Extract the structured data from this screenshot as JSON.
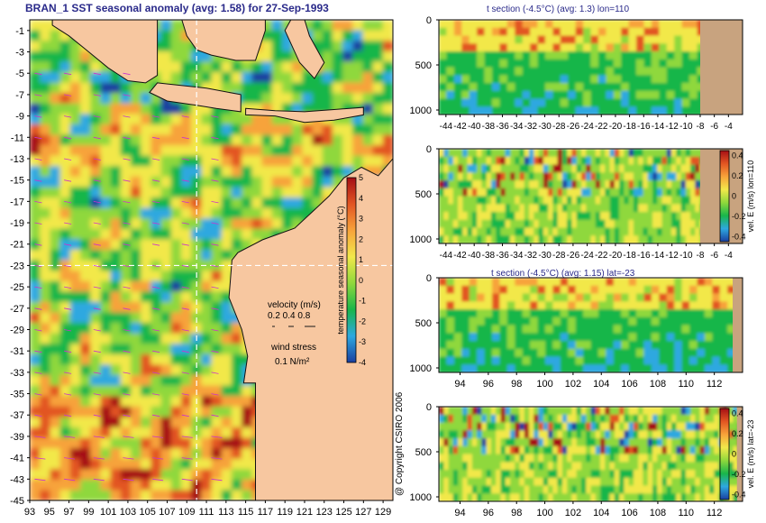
{
  "main_title": "BRAN_1 SST seasonal anomaly (avg: 1.58) for 27-Sep-1993",
  "copyright": "@ Copyright CSIRO 2006",
  "colors": {
    "ocean_ramp": [
      "#1a3fa0",
      "#2ea8e0",
      "#19b64a",
      "#8fd83c",
      "#f2e84a",
      "#f7a33a",
      "#e25522",
      "#a50f15"
    ],
    "land": "#f7c7a0",
    "panel_land": "#c8a37f",
    "title_blue": "#2a2a8a",
    "wind_arrow": "#cc33cc",
    "velocity_arrow": "#1a1a1a"
  },
  "chart_data": [
    {
      "type": "heatmap",
      "name": "map",
      "title": "BRAN_1 SST seasonal anomaly (avg: 1.58) for 27-Sep-1993",
      "x_ticks": [
        "93",
        "95",
        "97",
        "99",
        "101",
        "103",
        "105",
        "107",
        "109",
        "111",
        "113",
        "115",
        "117",
        "119",
        "121",
        "123",
        "125",
        "127",
        "129"
      ],
      "y_ticks": [
        "-1",
        "-3",
        "-5",
        "-7",
        "-9",
        "-11",
        "-13",
        "-15",
        "-17",
        "-19",
        "-21",
        "-23",
        "-25",
        "-27",
        "-29",
        "-31",
        "-33",
        "-35",
        "-37",
        "-39",
        "-41",
        "-43",
        "-45"
      ],
      "xlim": [
        93,
        130
      ],
      "ylim": [
        -45,
        0
      ],
      "section_lon": 110,
      "section_lat": -23,
      "colorbar": {
        "label": "temperature seasonal anomaly (°C)",
        "ticks": [
          "5",
          "4",
          "3",
          "2",
          "1",
          "0",
          "-1",
          "-2",
          "-3",
          "-4"
        ],
        "range": [
          -4,
          5
        ]
      },
      "velocity_legend": {
        "title": "velocity (m/s)",
        "values": "0.2 0.4 0.8"
      },
      "wind_legend": {
        "title": "wind stress",
        "value": "0.1 N/m²"
      }
    },
    {
      "type": "heatmap",
      "name": "panel1",
      "title": "t section (-4.5°C) (avg: 1.3) lon=110",
      "x_ticks": [
        "-44",
        "-42",
        "-40",
        "-38",
        "-36",
        "-34",
        "-32",
        "-30",
        "-28",
        "-26",
        "-24",
        "-22",
        "-20",
        "-18",
        "-16",
        "-14",
        "-12",
        "-10",
        "-8",
        "-6",
        "-4"
      ],
      "y_ticks": [
        "0",
        "500",
        "1000"
      ],
      "xlim": [
        -45,
        -2
      ],
      "ylim": [
        1050,
        0
      ],
      "land_from_x": -8
    },
    {
      "type": "heatmap",
      "name": "panel2",
      "title": "",
      "x_ticks": [
        "-44",
        "-42",
        "-40",
        "-38",
        "-36",
        "-34",
        "-32",
        "-30",
        "-28",
        "-26",
        "-24",
        "-22",
        "-20",
        "-18",
        "-16",
        "-14",
        "-12",
        "-10",
        "-8",
        "-6",
        "-4"
      ],
      "y_ticks": [
        "0",
        "500",
        "1000"
      ],
      "xlim": [
        -45,
        -2
      ],
      "ylim": [
        1050,
        0
      ],
      "land_from_x": -8,
      "colorbar": {
        "label": "vel. E (m/s) lon=110",
        "ticks": [
          "0.4",
          "0.2",
          "0",
          "-0.2",
          "-0.4"
        ],
        "range": [
          -0.45,
          0.45
        ]
      }
    },
    {
      "type": "heatmap",
      "name": "panel3",
      "title": "t section (-4.5°C) (avg: 1.15) lat=-23",
      "x_ticks": [
        "94",
        "96",
        "98",
        "100",
        "102",
        "104",
        "106",
        "108",
        "110",
        "112"
      ],
      "y_ticks": [
        "0",
        "500",
        "1000"
      ],
      "xlim": [
        92.5,
        114
      ],
      "ylim": [
        1050,
        0
      ],
      "land_from_x": 113.3
    },
    {
      "type": "heatmap",
      "name": "panel4",
      "title": "",
      "x_ticks": [
        "94",
        "96",
        "98",
        "100",
        "102",
        "104",
        "106",
        "108",
        "110",
        "112"
      ],
      "y_ticks": [
        "0",
        "500",
        "1000"
      ],
      "xlim": [
        92.5,
        114
      ],
      "ylim": [
        1050,
        0
      ],
      "land_from_x": 113.6,
      "colorbar": {
        "label": "vel. E (m/s) lat=-23",
        "ticks": [
          "0.4",
          "0.2",
          "0",
          "-0.2",
          "-0.4"
        ],
        "range": [
          -0.45,
          0.45
        ]
      }
    }
  ]
}
